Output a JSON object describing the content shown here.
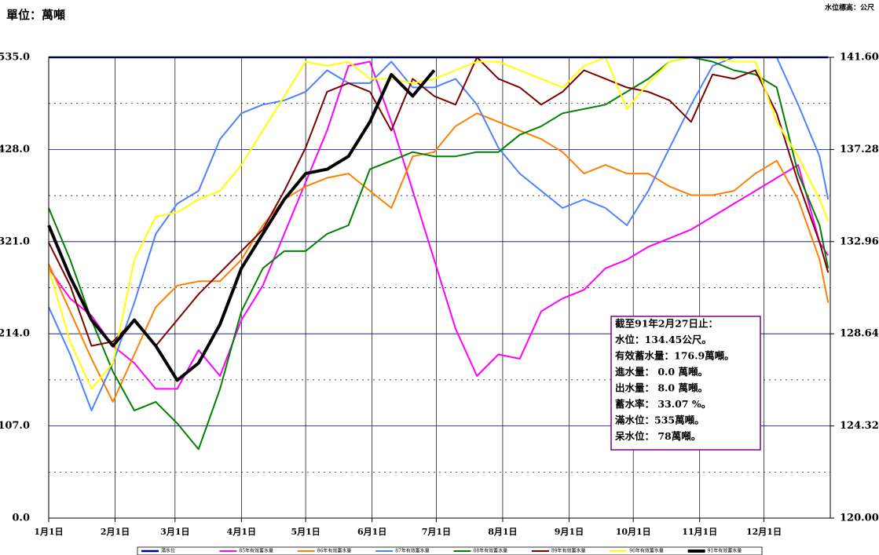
{
  "chart_data": {
    "type": "line",
    "title": "單位：萬噸",
    "y2_label": "水位標高：公尺",
    "x": [
      0,
      10,
      20,
      30,
      40,
      50,
      60,
      70,
      80,
      90,
      100,
      110,
      120,
      130,
      140,
      150,
      160,
      170,
      180,
      190,
      200,
      210,
      220,
      230,
      240,
      250,
      260,
      270,
      280,
      290,
      300,
      310,
      320,
      330,
      340,
      350,
      360,
      364
    ],
    "xlim": [
      0,
      365
    ],
    "xticks": [
      {
        "value": 0,
        "label": "1月1日"
      },
      {
        "value": 31,
        "label": "2月1日"
      },
      {
        "value": 59,
        "label": "3月1日"
      },
      {
        "value": 90,
        "label": "4月1日"
      },
      {
        "value": 120,
        "label": "5月1日"
      },
      {
        "value": 151,
        "label": "6月1日"
      },
      {
        "value": 181,
        "label": "7月1日"
      },
      {
        "value": 212,
        "label": "8月1日"
      },
      {
        "value": 243,
        "label": "9月1日"
      },
      {
        "value": 273,
        "label": "10月1日"
      },
      {
        "value": 304,
        "label": "11月1日"
      },
      {
        "value": 334,
        "label": "12月1日"
      }
    ],
    "ylim": [
      0,
      535
    ],
    "yticks": [
      {
        "value": 0,
        "label": "0.0"
      },
      {
        "value": 107,
        "label": "107.0"
      },
      {
        "value": 214,
        "label": "214.0"
      },
      {
        "value": 321,
        "label": "321.0"
      },
      {
        "value": 428,
        "label": "428.0"
      },
      {
        "value": 535,
        "label": "535.0"
      }
    ],
    "minor_yticks": [
      53.5,
      160.5,
      267.5,
      374.5,
      481.5
    ],
    "y2lim": [
      120,
      141.6
    ],
    "y2ticks": [
      {
        "value": 120,
        "label": "120.00"
      },
      {
        "value": 124.32,
        "label": "124.32"
      },
      {
        "value": 128.64,
        "label": "128.64"
      },
      {
        "value": 132.96,
        "label": "132.96"
      },
      {
        "value": 137.28,
        "label": "137.28"
      },
      {
        "value": 141.6,
        "label": "141.60"
      }
    ],
    "grid": true,
    "series": [
      {
        "name": "滿水位",
        "color": "#000080",
        "width": 2.5,
        "values": [
          535,
          535,
          535,
          535,
          535,
          535,
          535,
          535,
          535,
          535,
          535,
          535,
          535,
          535,
          535,
          535,
          535,
          535,
          535,
          535,
          535,
          535,
          535,
          535,
          535,
          535,
          535,
          535,
          535,
          535,
          535,
          535,
          535,
          535,
          535,
          535,
          535,
          535
        ]
      },
      {
        "name": "85年有效蓄水量",
        "color": "#ff00ff",
        "width": 2,
        "values": [
          290,
          255,
          235,
          200,
          180,
          150,
          150,
          195,
          165,
          230,
          270,
          330,
          390,
          450,
          525,
          530,
          460,
          380,
          300,
          220,
          165,
          190,
          185,
          240,
          255,
          265,
          290,
          300,
          315,
          325,
          335,
          350,
          365,
          380,
          395,
          410,
          320,
          305
        ]
      },
      {
        "name": "86年有效蓄水量",
        "color": "#ff7f00",
        "width": 2,
        "values": [
          295,
          240,
          185,
          135,
          190,
          245,
          270,
          275,
          275,
          300,
          340,
          370,
          385,
          395,
          400,
          380,
          360,
          420,
          425,
          455,
          470,
          460,
          450,
          440,
          425,
          400,
          410,
          400,
          400,
          385,
          375,
          375,
          380,
          400,
          415,
          370,
          300,
          250
        ]
      },
      {
        "name": "87年有效蓄水量",
        "color": "#4f81ff",
        "width": 2,
        "values": [
          245,
          190,
          125,
          180,
          250,
          330,
          365,
          380,
          440,
          470,
          480,
          485,
          495,
          520,
          505,
          505,
          530,
          500,
          500,
          510,
          480,
          430,
          400,
          380,
          360,
          370,
          360,
          340,
          380,
          430,
          480,
          525,
          535,
          535,
          535,
          480,
          420,
          370
        ]
      },
      {
        "name": "88年有效蓄水量",
        "color": "#008000",
        "width": 2,
        "values": [
          360,
          300,
          230,
          170,
          125,
          135,
          110,
          80,
          150,
          240,
          290,
          310,
          310,
          330,
          340,
          405,
          415,
          425,
          420,
          420,
          425,
          425,
          445,
          455,
          470,
          475,
          480,
          495,
          510,
          530,
          535,
          530,
          520,
          515,
          500,
          400,
          340,
          290
        ]
      },
      {
        "name": "89年有效蓄水量",
        "color": "#800000",
        "width": 2,
        "values": [
          320,
          270,
          200,
          205,
          230,
          200,
          230,
          260,
          285,
          310,
          335,
          380,
          430,
          495,
          505,
          495,
          450,
          510,
          490,
          480,
          535,
          510,
          500,
          480,
          495,
          520,
          510,
          500,
          495,
          485,
          460,
          515,
          510,
          520,
          470,
          390,
          320,
          285
        ]
      },
      {
        "name": "90年有效蓄水量",
        "color": "#ffff00",
        "width": 2,
        "values": [
          290,
          205,
          150,
          180,
          300,
          350,
          355,
          370,
          380,
          410,
          450,
          490,
          530,
          525,
          530,
          510,
          510,
          505,
          510,
          520,
          530,
          530,
          520,
          510,
          500,
          525,
          535,
          475,
          505,
          530,
          535,
          535,
          530,
          530,
          460,
          420,
          370,
          345
        ]
      },
      {
        "name": "91年有效蓄水量",
        "color": "#000000",
        "width": 4,
        "values": [
          340,
          280,
          230,
          200,
          230,
          200,
          160,
          180,
          225,
          290,
          330,
          370,
          400,
          405,
          420,
          460,
          515,
          490,
          520,
          null,
          null,
          null,
          null,
          null,
          null,
          null,
          null,
          null,
          null,
          null,
          null,
          null,
          null,
          null,
          null,
          null,
          null,
          null
        ]
      }
    ],
    "annotation": [
      "截至91年2月27日止：",
      "水位：134.45公尺。",
      "有效蓄水量：176.9萬噸。",
      "進水量： 0.0 萬噸。",
      "出水量： 8.0 萬噸。",
      "蓄水率： 33.07 %。",
      "滿水位：535萬噸。",
      "呆水位： 78萬噸。"
    ]
  }
}
